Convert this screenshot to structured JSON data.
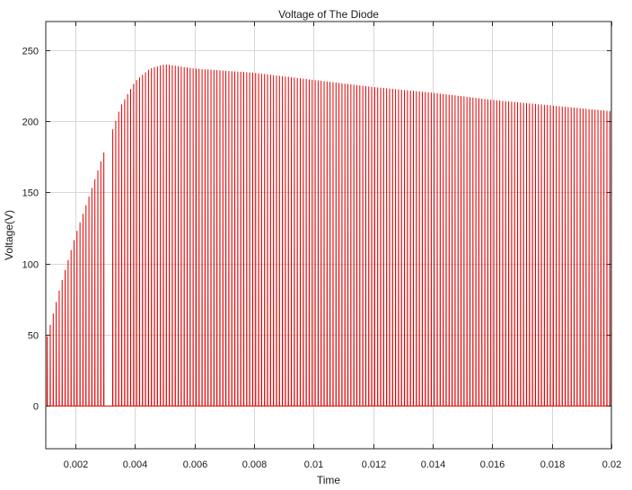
{
  "chart_data": {
    "type": "line",
    "title": "Voltage of The Diode",
    "xlabel": "Time",
    "ylabel": "Voltage(V)",
    "xlim": [
      0.001,
      0.02
    ],
    "ylim": [
      -30,
      270
    ],
    "x_ticks": [
      0.002,
      0.004,
      0.006,
      0.008,
      0.01,
      0.012,
      0.014,
      0.016,
      0.018,
      0.02
    ],
    "x_tick_labels": [
      "0.002",
      "0.004",
      "0.006",
      "0.008",
      "0.01",
      "0.012",
      "0.014",
      "0.016",
      "0.018",
      "0.02"
    ],
    "y_ticks": [
      0,
      50,
      100,
      150,
      200,
      250
    ],
    "y_tick_labels": [
      "0",
      "50",
      "100",
      "150",
      "200",
      "250"
    ],
    "grid": true,
    "series": [
      {
        "color": "#e00000",
        "pulse_period": 0.0001,
        "envelope": [
          {
            "t": 0.001,
            "v": 45
          },
          {
            "t": 0.0015,
            "v": 85
          },
          {
            "t": 0.002,
            "v": 120
          },
          {
            "t": 0.0025,
            "v": 150
          },
          {
            "t": 0.00295,
            "v": 178
          },
          {
            "t": 0.0033,
            "v": 197
          },
          {
            "t": 0.0035,
            "v": 210
          },
          {
            "t": 0.004,
            "v": 228
          },
          {
            "t": 0.0045,
            "v": 237
          },
          {
            "t": 0.005,
            "v": 240
          },
          {
            "t": 0.006,
            "v": 237
          },
          {
            "t": 0.008,
            "v": 234
          },
          {
            "t": 0.01,
            "v": 229
          },
          {
            "t": 0.012,
            "v": 224
          },
          {
            "t": 0.014,
            "v": 220
          },
          {
            "t": 0.016,
            "v": 215
          },
          {
            "t": 0.018,
            "v": 211
          },
          {
            "t": 0.02,
            "v": 207
          }
        ],
        "gap": [
          0.00295,
          0.0032
        ]
      }
    ]
  }
}
